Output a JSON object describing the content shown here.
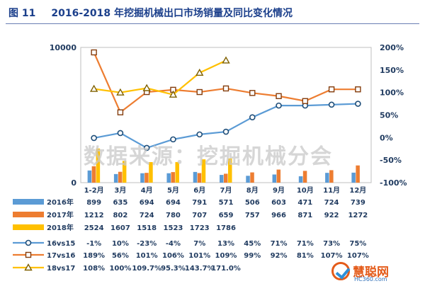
{
  "title": {
    "fig": "图 11",
    "text": "2016-2018 年挖掘机械出口市场销量及同比变化情况"
  },
  "watermark": "数据来源：挖掘机械分会",
  "logo": {
    "name": "慧聪网",
    "url_text": "HC360.com"
  },
  "colors": {
    "y2016": "#5b9bd5",
    "y2017": "#ed7d31",
    "y2018": "#ffc000",
    "g16vs15": "#5b9bd5",
    "g17vs16": "#ed7d31",
    "g18vs17": "#ffc000",
    "text": "#1f3a5f",
    "grid": "#d9d9d9"
  },
  "chart_data": {
    "type": "bar+line",
    "categories": [
      "1-2月",
      "3月",
      "4月",
      "5月",
      "6月",
      "7月",
      "8月",
      "9月",
      "10月",
      "11月",
      "12月"
    ],
    "left_axis": {
      "ticks": [
        "10000",
        "0"
      ],
      "range": [
        0,
        10000
      ]
    },
    "right_axis": {
      "ticks": [
        "200%",
        "150%",
        "100%",
        "50%",
        "0%",
        "-50%",
        "-100%"
      ],
      "range": [
        -100,
        200
      ]
    },
    "bars": [
      {
        "name": "2016年",
        "values": [
          899,
          635,
          694,
          694,
          791,
          571,
          506,
          603,
          471,
          724,
          739
        ]
      },
      {
        "name": "2017年",
        "values": [
          1212,
          802,
          724,
          780,
          707,
          659,
          757,
          966,
          871,
          922,
          1272
        ]
      },
      {
        "name": "2018年",
        "values": [
          2524,
          1607,
          1518,
          1523,
          1723,
          1786
        ]
      }
    ],
    "lines": [
      {
        "name": "16vs15",
        "values": [
          -1,
          10,
          -23,
          -4,
          7,
          13,
          45,
          71,
          71,
          73,
          75
        ],
        "labels": [
          "-1%",
          "10%",
          "-23%",
          "-4%",
          "7%",
          "13%",
          "45%",
          "71%",
          "71%",
          "73%",
          "75%"
        ]
      },
      {
        "name": "17vs16",
        "values": [
          189,
          56,
          101,
          106,
          101,
          109,
          99,
          92,
          81,
          107,
          107
        ],
        "labels": [
          "189%",
          "56%",
          "101%",
          "106%",
          "101%",
          "109%",
          "99%",
          "92%",
          "81%",
          "107%",
          "107%"
        ]
      },
      {
        "name": "18vs17",
        "values": [
          108,
          100,
          109.7,
          95.3,
          143.7,
          171.0
        ],
        "labels": [
          "108%",
          "100%",
          "109.7%",
          "95.3%",
          "143.7%",
          "171.0%"
        ]
      }
    ]
  }
}
